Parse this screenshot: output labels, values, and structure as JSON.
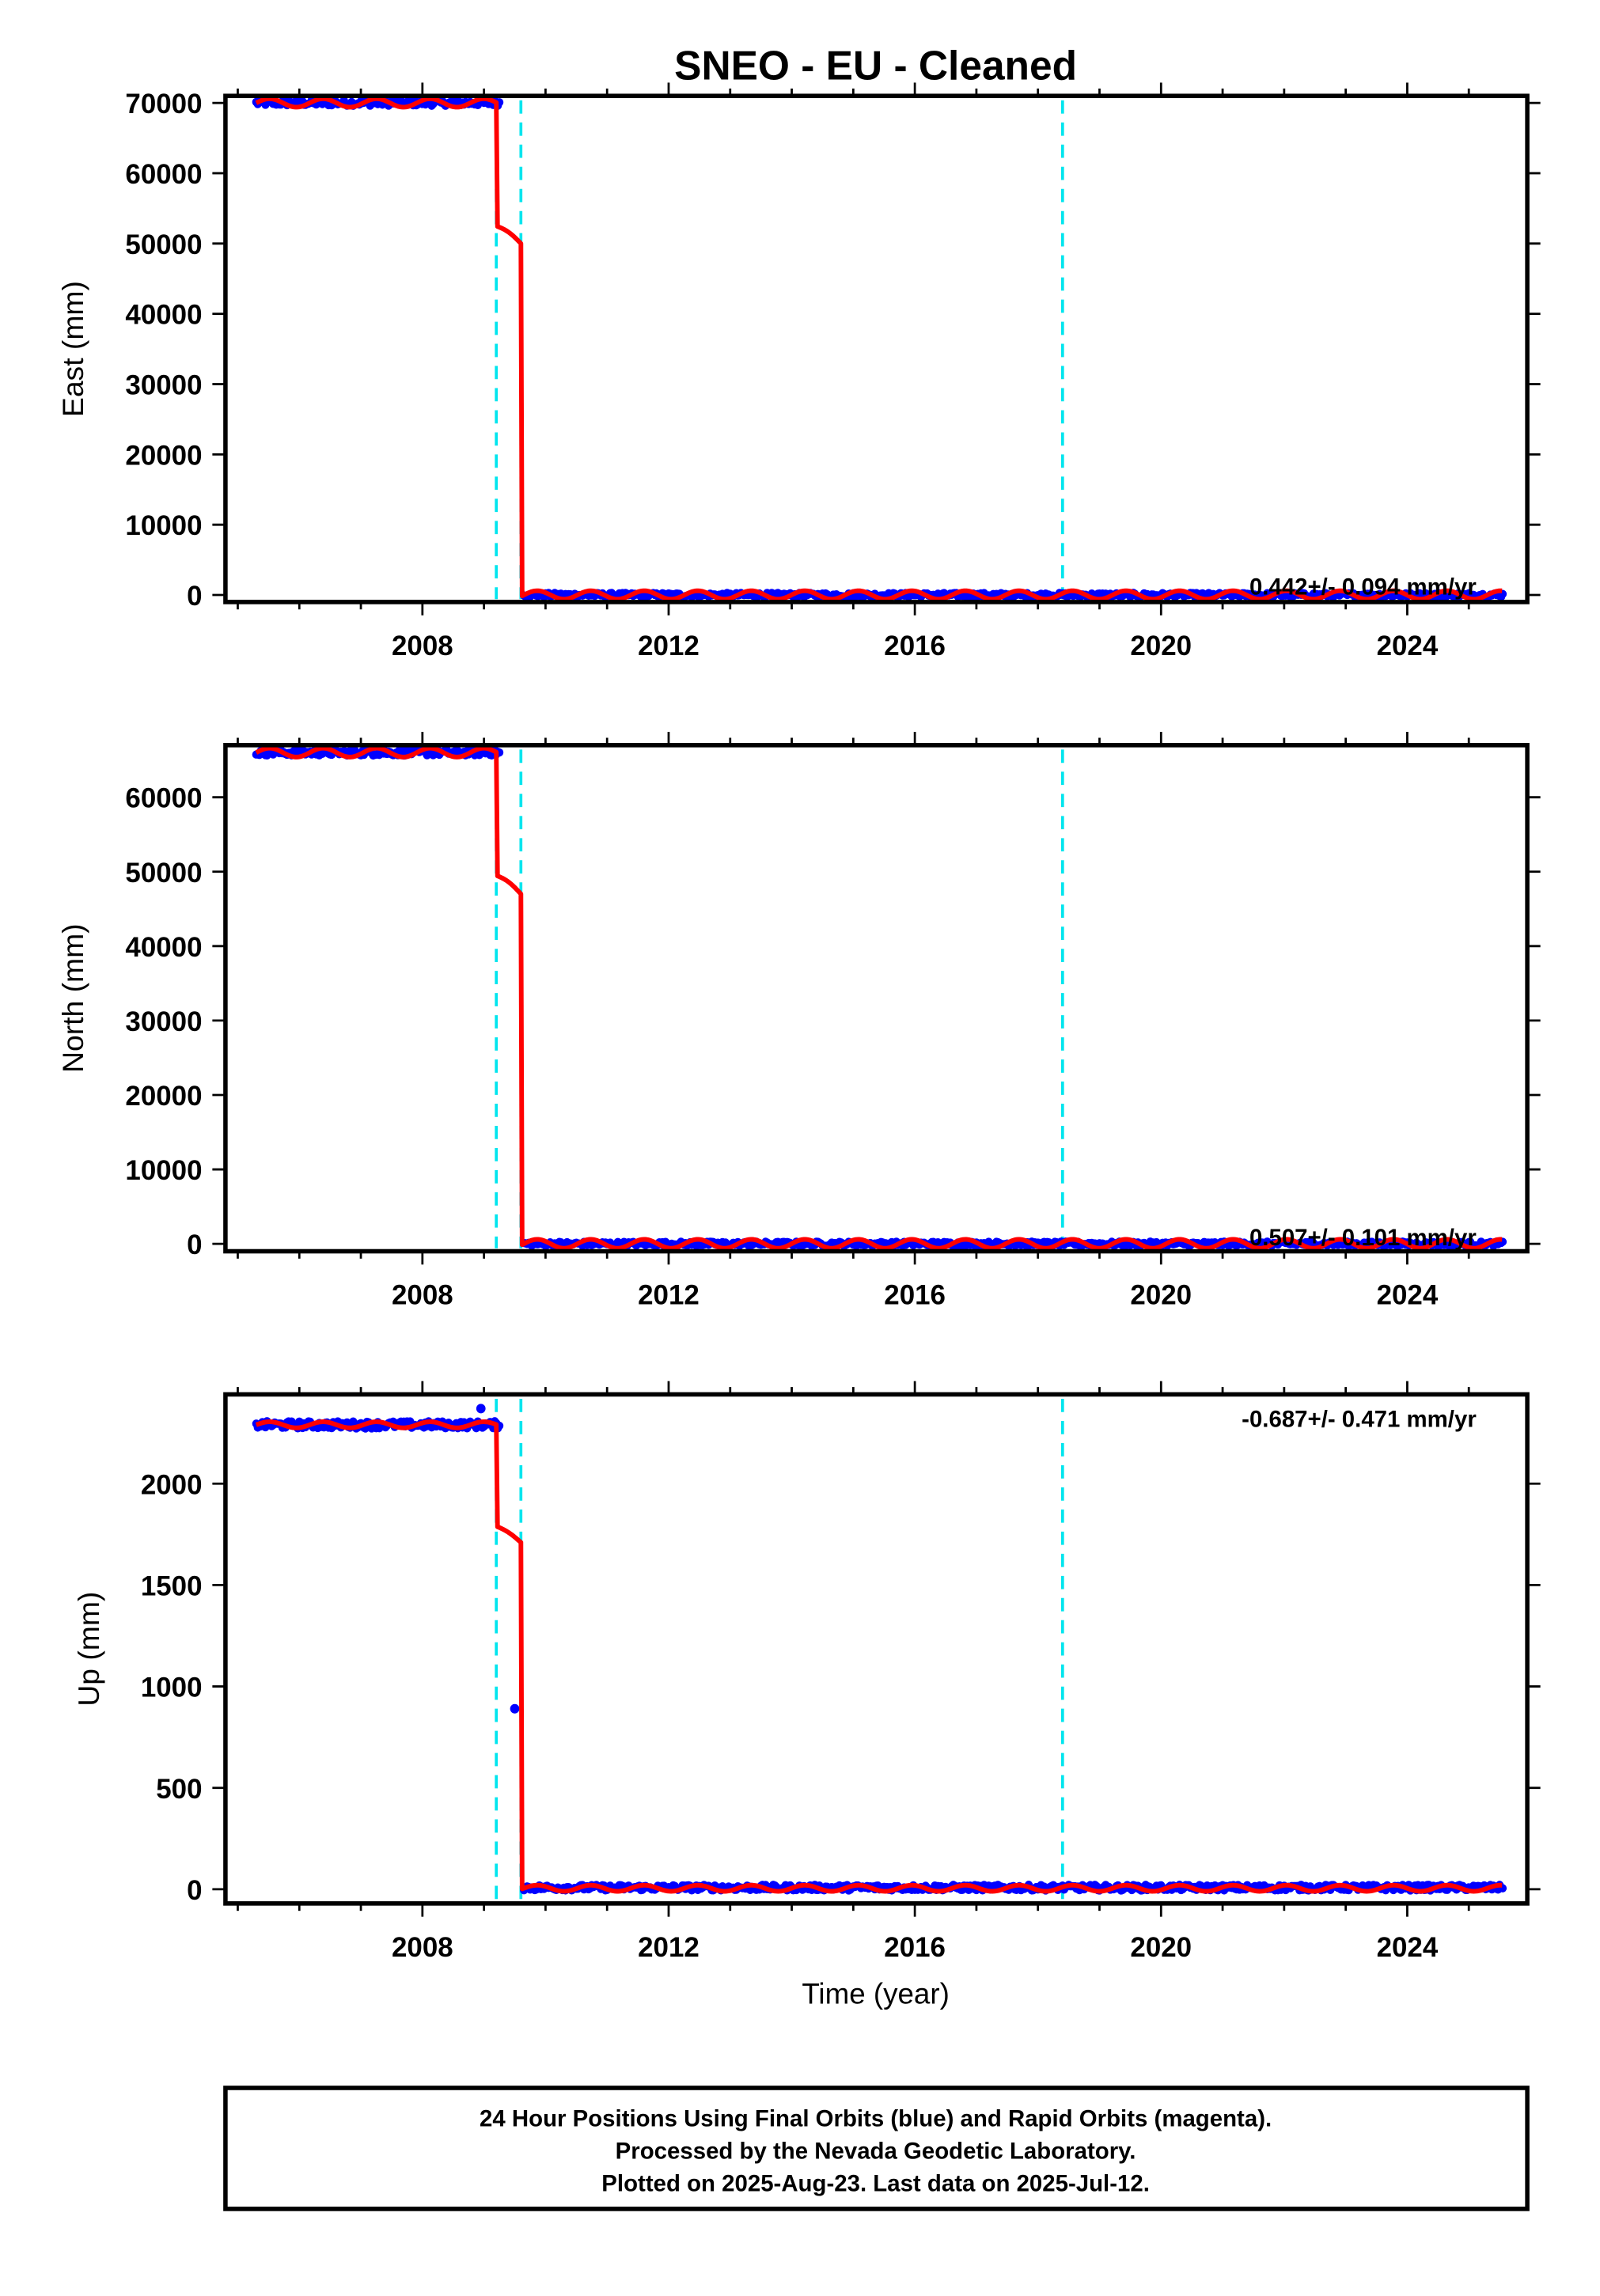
{
  "figure": {
    "title": "SNEO  - EU - Cleaned",
    "xlabel": "Time (year)",
    "footer": [
      "24 Hour Positions Using Final Orbits (blue) and Rapid Orbits (magenta).",
      "Processed by the Nevada Geodetic Laboratory.",
      "Plotted on 2025-Aug-23. Last data on 2025-Jul-12."
    ],
    "colors": {
      "data_points": "#0000ff",
      "model_line": "#ff0000",
      "event_lines": "#00e5ee",
      "frame": "#000000"
    }
  },
  "chart_data": [
    {
      "type": "scatter",
      "panel": "east",
      "ylabel": "East (mm)",
      "rate_label": "0.442+/- 0.094 mm/yr",
      "xlim": [
        2004.8,
        2025.95
      ],
      "ylim": [
        -1000,
        71000
      ],
      "x_ticks": [
        2008,
        2012,
        2016,
        2020,
        2024
      ],
      "y_ticks": [
        0,
        10000,
        20000,
        30000,
        40000,
        50000,
        60000,
        70000
      ],
      "event_lines_x": [
        2009.2,
        2009.6,
        2018.4
      ],
      "series": [
        {
          "name": "Final Orbits (blue)",
          "segments": [
            {
              "x_start": 2005.3,
              "x_end": 2009.25,
              "y": 70000,
              "scatter": 400
            },
            {
              "x_start": 2009.65,
              "x_end": 2025.55,
              "y": 0,
              "scatter": 300
            }
          ],
          "outliers": []
        }
      ],
      "model": {
        "pre_level": 70000,
        "mid_level": 52500,
        "post_level": 0,
        "break1": 2009.2,
        "break2": 2009.6,
        "seasonal_amplitude": 600,
        "mid_slope": -2500
      }
    },
    {
      "type": "scatter",
      "panel": "north",
      "ylabel": "North (mm)",
      "rate_label": "0.507+/- 0.101 mm/yr",
      "xlim": [
        2004.8,
        2025.95
      ],
      "ylim": [
        -1000,
        67000
      ],
      "x_ticks": [
        2008,
        2012,
        2016,
        2020,
        2024
      ],
      "y_ticks": [
        0,
        10000,
        20000,
        30000,
        40000,
        50000,
        60000
      ],
      "event_lines_x": [
        2009.2,
        2009.6,
        2018.4
      ],
      "series": [
        {
          "name": "Final Orbits (blue)",
          "segments": [
            {
              "x_start": 2005.3,
              "x_end": 2009.25,
              "y": 66000,
              "scatter": 400
            },
            {
              "x_start": 2009.65,
              "x_end": 2025.55,
              "y": 0,
              "scatter": 300
            }
          ],
          "outliers": []
        }
      ],
      "model": {
        "pre_level": 66000,
        "mid_level": 49500,
        "post_level": 0,
        "break1": 2009.2,
        "break2": 2009.6,
        "seasonal_amplitude": 600,
        "mid_slope": -2500
      }
    },
    {
      "type": "scatter",
      "panel": "up",
      "ylabel": "Up (mm)",
      "rate_label": "-0.687+/- 0.471 mm/yr",
      "xlim": [
        2004.8,
        2025.95
      ],
      "ylim": [
        -70,
        2440
      ],
      "x_ticks": [
        2008,
        2012,
        2016,
        2020,
        2024
      ],
      "y_ticks": [
        0,
        500,
        1000,
        1500,
        2000
      ],
      "event_lines_x": [
        2009.2,
        2009.6,
        2018.4
      ],
      "series": [
        {
          "name": "Final Orbits (blue)",
          "segments": [
            {
              "x_start": 2005.3,
              "x_end": 2009.25,
              "y": 2290,
              "scatter": 18
            },
            {
              "x_start": 2009.65,
              "x_end": 2025.55,
              "y": 8,
              "scatter": 14
            }
          ],
          "outliers": [
            {
              "x": 2008.95,
              "y": 2370
            },
            {
              "x": 2009.5,
              "y": 890
            }
          ]
        }
      ],
      "model": {
        "pre_level": 2290,
        "mid_level": 1790,
        "post_level": 5,
        "break1": 2009.2,
        "break2": 2009.6,
        "seasonal_amplitude": 15,
        "mid_slope": -80
      }
    }
  ]
}
